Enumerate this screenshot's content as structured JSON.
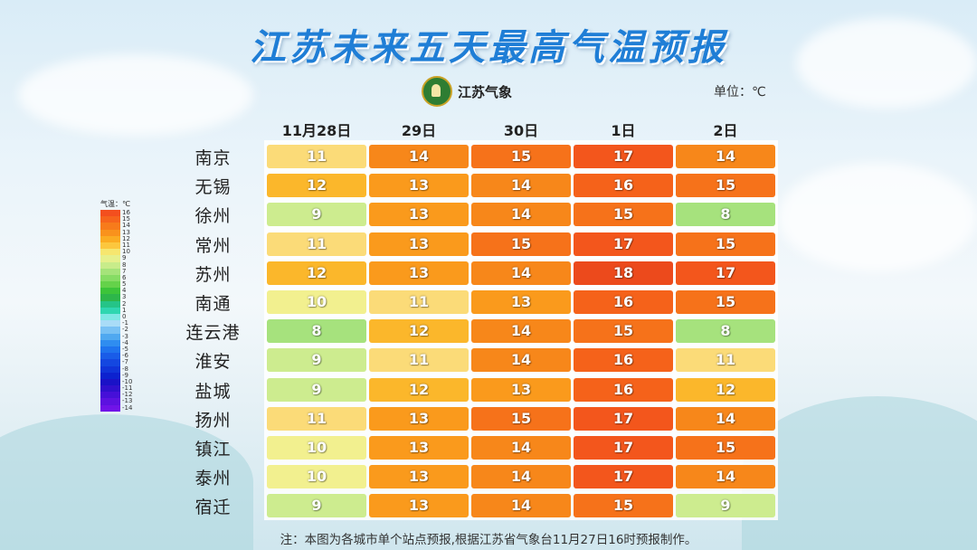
{
  "title": "江苏未来五天最高气温预报",
  "logo_text": "江苏气象",
  "unit_label": "单位：℃",
  "days": [
    "11月28日",
    "29日",
    "30日",
    "1日",
    "2日"
  ],
  "rows": [
    {
      "city": "南京",
      "temps": [
        11,
        14,
        15,
        17,
        14
      ]
    },
    {
      "city": "无锡",
      "temps": [
        12,
        13,
        14,
        16,
        15
      ]
    },
    {
      "city": "徐州",
      "temps": [
        9,
        13,
        14,
        15,
        8
      ]
    },
    {
      "city": "常州",
      "temps": [
        11,
        13,
        15,
        17,
        15
      ]
    },
    {
      "city": "苏州",
      "temps": [
        12,
        13,
        14,
        18,
        17
      ]
    },
    {
      "city": "南通",
      "temps": [
        10,
        11,
        13,
        16,
        15
      ]
    },
    {
      "city": "连云港",
      "temps": [
        8,
        12,
        14,
        15,
        8
      ]
    },
    {
      "city": "淮安",
      "temps": [
        9,
        11,
        14,
        16,
        11
      ]
    },
    {
      "city": "盐城",
      "temps": [
        9,
        12,
        13,
        16,
        12
      ]
    },
    {
      "city": "扬州",
      "temps": [
        11,
        13,
        15,
        17,
        14
      ]
    },
    {
      "city": "镇江",
      "temps": [
        10,
        13,
        14,
        17,
        15
      ]
    },
    {
      "city": "泰州",
      "temps": [
        10,
        13,
        14,
        17,
        14
      ]
    },
    {
      "city": "宿迁",
      "temps": [
        9,
        13,
        14,
        15,
        9
      ]
    }
  ],
  "temp_colors": {
    "8": "#a6e27d",
    "9": "#cdec8f",
    "10": "#f2f08f",
    "11": "#fbdb78",
    "12": "#fbb72b",
    "13": "#fa9a1c",
    "14": "#f7871a",
    "15": "#f6721a",
    "16": "#f5621a",
    "17": "#f3561c",
    "18": "#ec4a1c"
  },
  "legend": {
    "header": "气温：℃",
    "items": [
      {
        "label": "16",
        "color": "#f34f1e"
      },
      {
        "label": "15",
        "color": "#f6641c"
      },
      {
        "label": "14",
        "color": "#f77b1b"
      },
      {
        "label": "13",
        "color": "#f9921c"
      },
      {
        "label": "12",
        "color": "#fbac22"
      },
      {
        "label": "11",
        "color": "#fcc73e"
      },
      {
        "label": "10",
        "color": "#f6e66f"
      },
      {
        "label": "9",
        "color": "#e6f08c"
      },
      {
        "label": "8",
        "color": "#c8ec8a"
      },
      {
        "label": "7",
        "color": "#a5e37a"
      },
      {
        "label": "6",
        "color": "#86dc64"
      },
      {
        "label": "5",
        "color": "#65d24a"
      },
      {
        "label": "4",
        "color": "#3cc43a"
      },
      {
        "label": "3",
        "color": "#2db64a"
      },
      {
        "label": "2",
        "color": "#25c487"
      },
      {
        "label": "1",
        "color": "#2fd6b0"
      },
      {
        "label": "0",
        "color": "#7fe7e5"
      },
      {
        "label": "-1",
        "color": "#a9dcf7"
      },
      {
        "label": "-2",
        "color": "#79c1f4"
      },
      {
        "label": "-3",
        "color": "#4fa8f0"
      },
      {
        "label": "-4",
        "color": "#2f8df0"
      },
      {
        "label": "-5",
        "color": "#1f73ee"
      },
      {
        "label": "-6",
        "color": "#195ce8"
      },
      {
        "label": "-7",
        "color": "#1447e0"
      },
      {
        "label": "-8",
        "color": "#1034d8"
      },
      {
        "label": "-9",
        "color": "#0c22cf"
      },
      {
        "label": "-10",
        "color": "#1a12c7"
      },
      {
        "label": "-11",
        "color": "#3010cd"
      },
      {
        "label": "-12",
        "color": "#4610d8"
      },
      {
        "label": "-13",
        "color": "#5c12e0"
      },
      {
        "label": "-14",
        "color": "#7013e8"
      }
    ]
  },
  "note": "注：本图为各城市单个站点预报,根据江苏省气象台11月27日16时预报制作。"
}
